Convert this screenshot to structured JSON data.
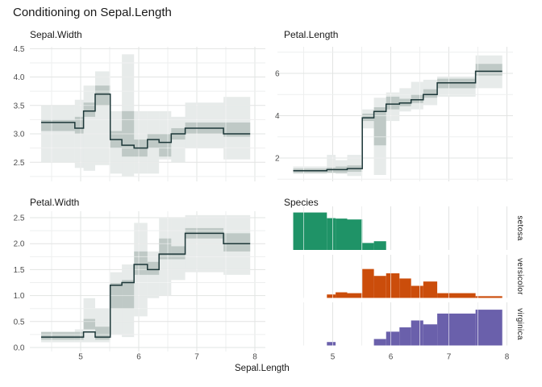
{
  "title": "Conditioning on Sepal.Length",
  "x_axis": {
    "label": "Sepal.Length",
    "ticks": [
      5,
      6,
      7,
      8
    ],
    "tick_labels": [
      "5",
      "6",
      "7",
      "8"
    ],
    "minor_ticks": [
      4.5,
      5.5,
      6.5,
      7.5
    ],
    "xlim": [
      4.12,
      8.18
    ]
  },
  "colors": {
    "background": "#ffffff",
    "step_line": "#1c3738",
    "band_tone": "136,156,148",
    "band_outer_alpha": 0.2,
    "band_inner_alpha": 0.42,
    "grid_major": "#e2e4e3",
    "grid_minor": "#eeefef",
    "grid_overlay": "rgba(255,255,255,0.6)",
    "setosa": "#1f9367",
    "versicolor": "#cb4d0b",
    "virginica": "#6a60ab",
    "title_text": "#191919",
    "axis_text": "#4d4d4d"
  },
  "breaks": [
    4.32,
    4.9,
    5.05,
    5.25,
    5.51,
    5.71,
    5.92,
    6.15,
    6.35,
    6.56,
    6.8,
    7.46,
    7.92
  ],
  "chart_data": [
    {
      "type": "step",
      "title": "Sepal.Width",
      "ylim": [
        2.163,
        4.533
      ],
      "yticks": [
        2.5,
        3.0,
        3.5,
        4.0,
        4.5
      ],
      "ytick_labels": [
        "2.5",
        "3.0",
        "3.5",
        "4.0",
        "4.5"
      ],
      "values": [
        3.2,
        3.1,
        3.4,
        3.7,
        2.9,
        2.8,
        2.75,
        2.9,
        2.85,
        3.0,
        3.1,
        3.0
      ],
      "band_inner": [
        [
          3.05,
          3.25
        ],
        [
          3.0,
          3.3
        ],
        [
          3.3,
          3.55
        ],
        [
          3.5,
          3.85
        ],
        [
          2.75,
          3.05
        ],
        [
          2.6,
          3.4
        ],
        [
          2.6,
          2.9
        ],
        [
          2.75,
          3.0
        ],
        [
          2.6,
          3.0
        ],
        [
          2.9,
          3.1
        ],
        [
          3.0,
          3.2
        ],
        [
          2.95,
          3.2
        ]
      ],
      "band_outer": [
        [
          2.5,
          3.5
        ],
        [
          2.4,
          3.6
        ],
        [
          2.35,
          3.85
        ],
        [
          2.45,
          4.1
        ],
        [
          2.3,
          3.4
        ],
        [
          2.25,
          4.4
        ],
        [
          2.3,
          3.4
        ],
        [
          2.3,
          3.4
        ],
        [
          2.55,
          3.4
        ],
        [
          2.5,
          3.3
        ],
        [
          2.75,
          3.55
        ],
        [
          2.55,
          3.65
        ]
      ]
    },
    {
      "type": "step",
      "title": "Petal.Length",
      "ylim": [
        0.895,
        7.259
      ],
      "yticks": [
        2,
        4,
        6
      ],
      "ytick_labels": [
        "2",
        "4",
        "6"
      ],
      "yminors": [
        1,
        3,
        5,
        7
      ],
      "values": [
        1.4,
        1.45,
        1.45,
        1.5,
        3.9,
        4.2,
        4.55,
        4.6,
        4.75,
        5.0,
        5.55,
        6.1
      ],
      "band_inner": [
        [
          1.3,
          1.5
        ],
        [
          1.3,
          1.55
        ],
        [
          1.3,
          1.6
        ],
        [
          1.35,
          1.65
        ],
        [
          3.75,
          4.1
        ],
        [
          2.6,
          4.4
        ],
        [
          4.3,
          4.9
        ],
        [
          4.45,
          4.8
        ],
        [
          4.6,
          5.0
        ],
        [
          4.85,
          5.25
        ],
        [
          5.3,
          5.75
        ],
        [
          5.9,
          6.45
        ]
      ],
      "band_outer": [
        [
          1.25,
          1.6
        ],
        [
          1.3,
          2.15
        ],
        [
          1.25,
          1.9
        ],
        [
          1.15,
          2.15
        ],
        [
          3.4,
          4.3
        ],
        [
          1.2,
          4.85
        ],
        [
          3.75,
          5.1
        ],
        [
          4.2,
          5.3
        ],
        [
          4.3,
          5.6
        ],
        [
          4.5,
          5.7
        ],
        [
          4.9,
          5.85
        ],
        [
          5.3,
          6.85
        ]
      ]
    },
    {
      "type": "step",
      "title": "Petal.Width",
      "ylim": [
        -0.078,
        2.625
      ],
      "yticks": [
        0,
        0.5,
        1,
        1.5,
        2,
        2.5
      ],
      "ytick_labels": [
        "0.0",
        "0.5",
        "1.0",
        "1.5",
        "2.0",
        "2.5"
      ],
      "values": [
        0.2,
        0.2,
        0.3,
        0.2,
        1.2,
        1.25,
        1.6,
        1.5,
        1.8,
        1.8,
        2.2,
        2.0
      ],
      "band_inner": [
        [
          0.15,
          0.3
        ],
        [
          0.15,
          0.3
        ],
        [
          0.35,
          0.55
        ],
        [
          0.15,
          0.4
        ],
        [
          0.75,
          1.25
        ],
        [
          0.75,
          1.3
        ],
        [
          1.4,
          1.85
        ],
        [
          1.4,
          1.65
        ],
        [
          1.7,
          2.1
        ],
        [
          1.7,
          1.95
        ],
        [
          2.1,
          2.3
        ],
        [
          1.85,
          2.2
        ]
      ],
      "band_outer": [
        [
          0.1,
          0.3
        ],
        [
          0.1,
          0.35
        ],
        [
          0.1,
          0.95
        ],
        [
          0.1,
          0.75
        ],
        [
          0.25,
          1.45
        ],
        [
          0.2,
          1.6
        ],
        [
          0.6,
          2.4
        ],
        [
          0.95,
          1.85
        ],
        [
          1.0,
          2.5
        ],
        [
          1.3,
          2.5
        ],
        [
          1.45,
          2.55
        ],
        [
          1.4,
          2.55
        ]
      ]
    },
    {
      "type": "histogram",
      "title": "Species",
      "facets": [
        {
          "name": "setosa",
          "heights": [
            0.86,
            0.73,
            0.72,
            0.7,
            0.16,
            0.2,
            0,
            0,
            0,
            0,
            0,
            0
          ]
        },
        {
          "name": "versicolor",
          "heights": [
            0,
            0.08,
            0.13,
            0.11,
            0.67,
            0.51,
            0.57,
            0.45,
            0.28,
            0.38,
            0.11,
            0.04
          ]
        },
        {
          "name": "virginica",
          "heights": [
            0,
            0.08,
            0,
            0,
            0,
            0.15,
            0.32,
            0.42,
            0.58,
            0.49,
            0.74,
            0.83
          ]
        }
      ]
    }
  ]
}
